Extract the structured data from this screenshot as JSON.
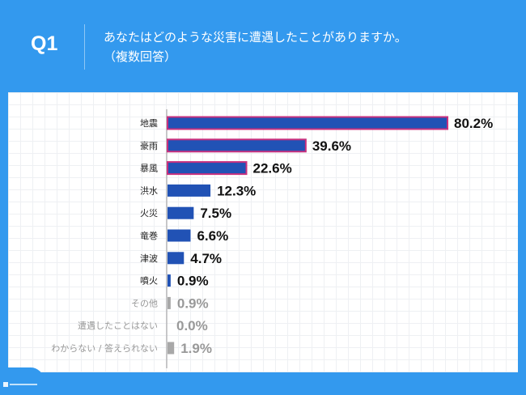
{
  "header": {
    "question_no": "Q1",
    "title_line1": "あなたはどのような災害に遭遇したことがありますか。",
    "title_line2": "（複数回答）"
  },
  "colors": {
    "background": "#3399ee",
    "bar": "#2152b5",
    "bar_highlight_border": "#c8307e",
    "bar_other": "#a8a8a8",
    "label_other": "#999999"
  },
  "chart_data": {
    "type": "bar",
    "orientation": "horizontal",
    "categories": [
      "地震",
      "豪雨",
      "暴風",
      "洪水",
      "火災",
      "竜巻",
      "津波",
      "噴火",
      "その他",
      "遭遇したことはない",
      "わからない / 答えられない"
    ],
    "values": [
      80.2,
      39.6,
      22.6,
      12.3,
      7.5,
      6.6,
      4.7,
      0.9,
      0.9,
      0.0,
      1.9
    ],
    "value_labels": [
      "80.2%",
      "39.6%",
      "22.6%",
      "12.3%",
      "7.5%",
      "6.6%",
      "4.7%",
      "0.9%",
      "0.9%",
      "0.0%",
      "1.9%"
    ],
    "highlighted": [
      true,
      true,
      true,
      false,
      false,
      false,
      false,
      false,
      false,
      false,
      false
    ],
    "muted": [
      false,
      false,
      false,
      false,
      false,
      false,
      false,
      false,
      true,
      true,
      true
    ],
    "unit": "%",
    "xlim": [
      0,
      100
    ],
    "grid": true,
    "legend": "none"
  }
}
